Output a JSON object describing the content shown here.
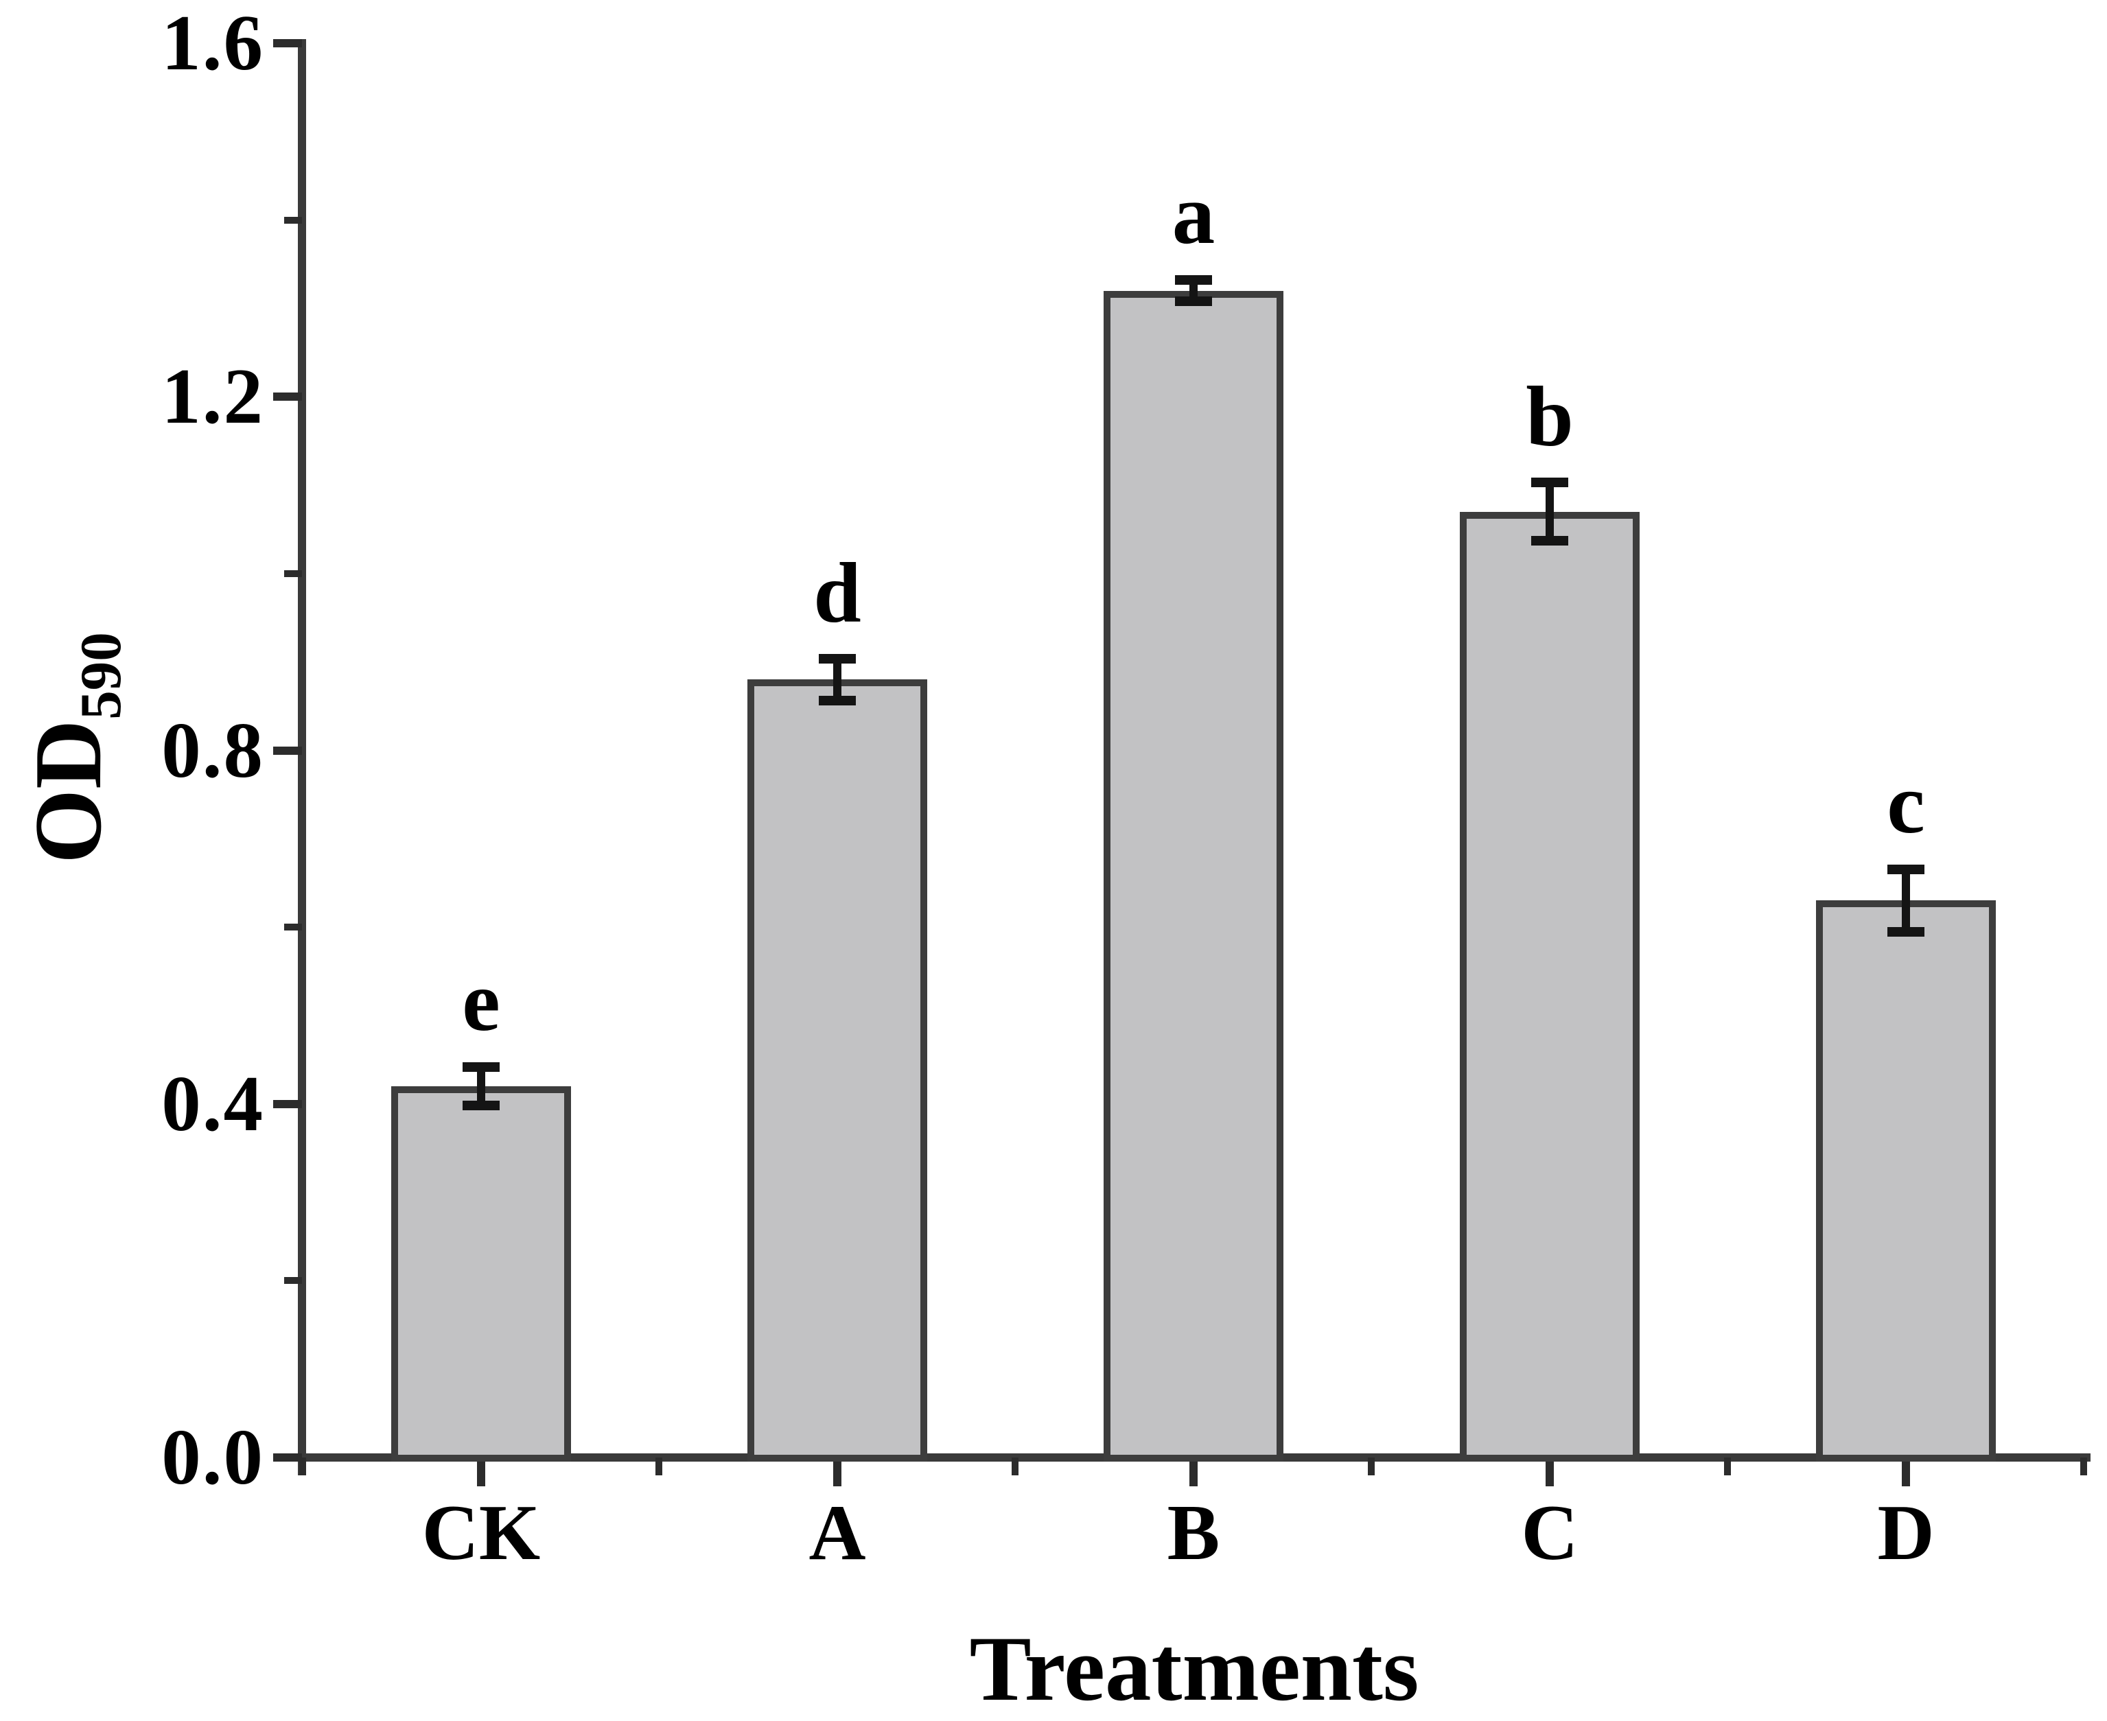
{
  "chart_data": {
    "type": "bar",
    "title": "",
    "categories": [
      "CK",
      "A",
      "B",
      "C",
      "D"
    ],
    "values": [
      0.42,
      0.88,
      1.32,
      1.07,
      0.63
    ],
    "errors": [
      0.022,
      0.024,
      0.012,
      0.033,
      0.035
    ],
    "significance_letters": [
      "e",
      "d",
      "a",
      "b",
      "c"
    ],
    "xlabel": "Treatments",
    "ylabel": "OD",
    "ylabel_subscript": "590",
    "ylim": [
      0.0,
      1.6
    ],
    "ytick_labels": [
      "0.0",
      "0.4",
      "0.8",
      "1.2",
      "1.6"
    ],
    "ytick_values": [
      0.0,
      0.4,
      0.8,
      1.2,
      1.6
    ],
    "yminor_values": [
      0.2,
      0.6,
      1.0,
      1.4
    ],
    "grid": "off",
    "legend": "none",
    "bar_fill_color": "#c2c2c4",
    "bar_border_color": "#3d3d3d",
    "axis_color": "#3a3a3a",
    "error_bar_color": "#141414",
    "background_color": "#ffffff"
  }
}
